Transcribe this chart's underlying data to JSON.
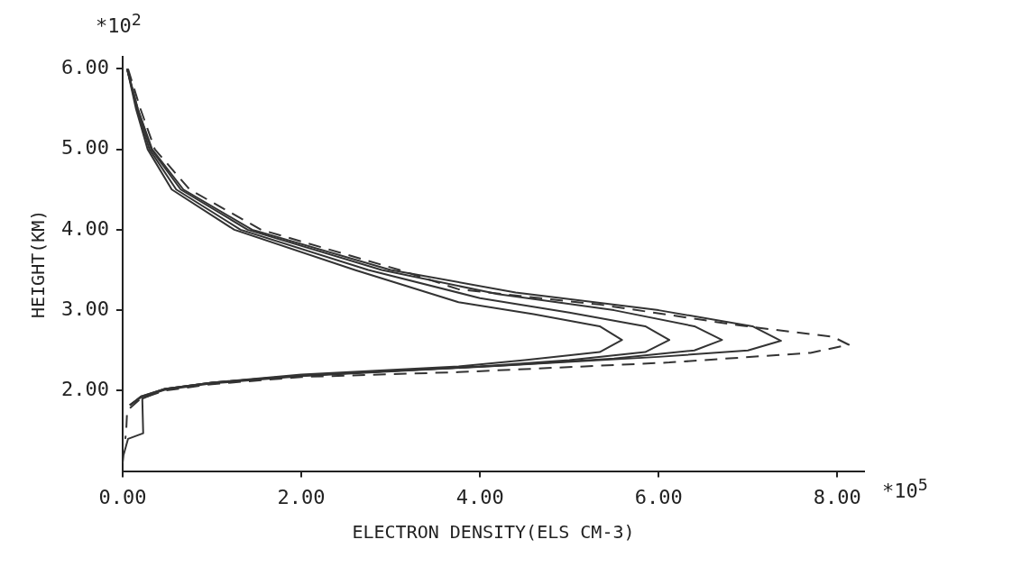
{
  "chart_data": {
    "type": "line",
    "xlabel": "ELECTRON DENSITY(ELS CM-3)",
    "ylabel": "HEIGHT(KM)",
    "annotations": [
      "*10$^{2}$",
      "*10$^{5}$"
    ],
    "xlim": [
      0,
      8.3
    ],
    "ylim": [
      1,
      6.15
    ],
    "xticks": [
      {
        "value": 0,
        "label": "0.00"
      },
      {
        "value": 2,
        "label": "2.00"
      },
      {
        "value": 4,
        "label": "4.00"
      },
      {
        "value": 6,
        "label": "6.00"
      },
      {
        "value": 8,
        "label": "8.00"
      }
    ],
    "yticks": [
      {
        "value": 2,
        "label": "2.00"
      },
      {
        "value": 3,
        "label": "3.00"
      },
      {
        "value": 4,
        "label": "4.00"
      },
      {
        "value": 5,
        "label": "5.00"
      },
      {
        "value": 6,
        "label": "6.00"
      }
    ],
    "grid": false,
    "legend": false,
    "marker": "none",
    "series": [
      {
        "color": "#333333",
        "line_style": "solid",
        "x": [
          0.05,
          0.15,
          0.28,
          0.55,
          1.25,
          2.6,
          3.76,
          4.6,
          5.34,
          5.59,
          5.34,
          4.5,
          3.76,
          2.0,
          1.0,
          0.47,
          0.22,
          0.23,
          0.06,
          0.01,
          0
        ],
        "values": [
          6.0,
          5.5,
          5.0,
          4.5,
          4.0,
          3.5,
          3.1,
          2.95,
          2.8,
          2.63,
          2.48,
          2.38,
          2.3,
          2.2,
          2.1,
          2.02,
          1.9,
          1.47,
          1.4,
          1.2,
          1.1
        ]
      },
      {
        "color": "#333333",
        "line_style": "solid",
        "x": [
          0.05,
          0.16,
          0.3,
          0.6,
          1.32,
          2.75,
          4.0,
          5.0,
          5.85,
          6.12,
          5.85,
          5.0,
          4.0,
          2.0,
          1.0,
          0.47,
          0.21,
          0.08
        ],
        "values": [
          6.0,
          5.5,
          5.0,
          4.5,
          4.0,
          3.5,
          3.15,
          2.97,
          2.8,
          2.63,
          2.48,
          2.38,
          2.3,
          2.19,
          2.1,
          2.02,
          1.93,
          1.82
        ]
      },
      {
        "color": "#333333",
        "line_style": "solid",
        "x": [
          0.05,
          0.17,
          0.32,
          0.65,
          1.4,
          2.9,
          4.2,
          5.5,
          6.4,
          6.71,
          6.4,
          5.5,
          4.2,
          2.0,
          1.0,
          0.47,
          0.21,
          0.08
        ],
        "values": [
          6.0,
          5.5,
          5.0,
          4.5,
          4.0,
          3.5,
          3.2,
          3.0,
          2.8,
          2.63,
          2.5,
          2.4,
          2.31,
          2.19,
          2.1,
          2.02,
          1.93,
          1.82
        ]
      },
      {
        "color": "#333333",
        "line_style": "solid",
        "x": [
          0.05,
          0.17,
          0.33,
          0.68,
          1.45,
          3.0,
          4.4,
          6.0,
          7.05,
          7.37,
          7.0,
          6.0,
          4.4,
          2.0,
          1.0,
          0.47,
          0.21,
          0.08
        ],
        "values": [
          6.0,
          5.5,
          5.0,
          4.5,
          4.0,
          3.5,
          3.22,
          3.0,
          2.8,
          2.62,
          2.5,
          2.42,
          2.32,
          2.18,
          2.09,
          2.01,
          1.92,
          1.82
        ]
      },
      {
        "color": "#333333",
        "line_style": "dashed",
        "x": [
          0.06,
          0.2,
          0.36,
          0.75,
          1.55,
          3.1,
          3.76,
          5.34,
          6.91,
          7.95,
          8.13,
          7.7,
          6.12,
          3.76,
          2.0,
          1.0,
          0.47,
          0.2,
          0.05,
          0.04,
          0.03
        ],
        "values": [
          6.0,
          5.5,
          5.0,
          4.5,
          4.0,
          3.5,
          3.26,
          3.07,
          2.81,
          2.67,
          2.57,
          2.47,
          2.35,
          2.23,
          2.17,
          2.08,
          2.0,
          1.9,
          1.75,
          1.5,
          1.4
        ]
      }
    ]
  }
}
